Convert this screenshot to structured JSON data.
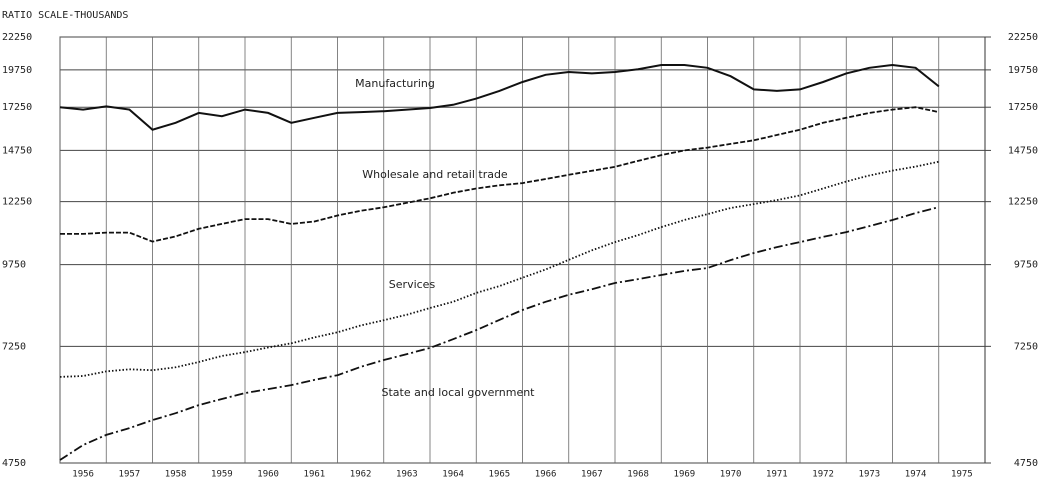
{
  "chart_data": {
    "type": "line",
    "title": "RATIO SCALE-THOUSANDS",
    "x": [
      1956.0,
      1956.5,
      1957.0,
      1957.5,
      1958.0,
      1958.5,
      1959.0,
      1959.5,
      1960.0,
      1960.5,
      1961.0,
      1961.5,
      1962.0,
      1962.5,
      1963.0,
      1963.5,
      1964.0,
      1964.5,
      1965.0,
      1965.5,
      1966.0,
      1966.5,
      1967.0,
      1967.5,
      1968.0,
      1968.5,
      1969.0,
      1969.5,
      1970.0,
      1970.5,
      1971.0,
      1971.5,
      1972.0,
      1972.5,
      1973.0,
      1973.5,
      1974.0,
      1974.5,
      1975.0
    ],
    "series": [
      {
        "name": "Manufacturing",
        "color": "#111",
        "style": "solid",
        "values": [
          17250,
          17100,
          17300,
          17100,
          15900,
          16300,
          16900,
          16700,
          17100,
          16900,
          16300,
          16600,
          16900,
          16950,
          17000,
          17100,
          17200,
          17400,
          17800,
          18300,
          18900,
          19400,
          19600,
          19500,
          19600,
          19800,
          20100,
          20100,
          19900,
          19300,
          18400,
          18300,
          18400,
          18900,
          19500,
          19900,
          20100,
          19900,
          18600
        ]
      },
      {
        "name": "Wholesale and retail trade",
        "color": "#111",
        "style": "dashed",
        "values": [
          10900,
          10900,
          10950,
          10950,
          10600,
          10800,
          11100,
          11300,
          11500,
          11500,
          11300,
          11400,
          11650,
          11850,
          12000,
          12200,
          12400,
          12650,
          12850,
          13000,
          13100,
          13300,
          13500,
          13700,
          13900,
          14200,
          14500,
          14750,
          14900,
          15100,
          15300,
          15600,
          15900,
          16300,
          16600,
          16900,
          17100,
          17250,
          16950
        ]
      },
      {
        "name": "Services",
        "color": "#111",
        "style": "dotted",
        "values": [
          6490,
          6510,
          6620,
          6670,
          6650,
          6720,
          6850,
          7000,
          7100,
          7220,
          7330,
          7490,
          7630,
          7820,
          7970,
          8130,
          8330,
          8520,
          8800,
          9020,
          9300,
          9580,
          9920,
          10270,
          10580,
          10850,
          11170,
          11460,
          11710,
          11970,
          12140,
          12320,
          12530,
          12850,
          13180,
          13470,
          13710,
          13910,
          14160
        ]
      },
      {
        "name": "State and local government",
        "color": "#111",
        "style": "dashdot",
        "values": [
          4802,
          5070,
          5260,
          5390,
          5550,
          5690,
          5860,
          5990,
          6120,
          6210,
          6300,
          6420,
          6530,
          6730,
          6900,
          7050,
          7210,
          7440,
          7690,
          7980,
          8270,
          8520,
          8740,
          8920,
          9120,
          9250,
          9390,
          9530,
          9630,
          9910,
          10170,
          10390,
          10580,
          10780,
          10970,
          11210,
          11460,
          11750,
          12010
        ]
      }
    ],
    "xlim": [
      1956,
      1976
    ],
    "xticks": [
      1956,
      1957,
      1958,
      1959,
      1960,
      1961,
      1962,
      1963,
      1964,
      1965,
      1966,
      1967,
      1968,
      1969,
      1970,
      1971,
      1972,
      1973,
      1974,
      1975
    ],
    "ylim": [
      4750,
      22250
    ],
    "yticks": [
      4750,
      7250,
      9750,
      12250,
      14750,
      17250,
      19750,
      22250
    ],
    "y2lim": [
      4750,
      22250
    ],
    "y2ticks": [
      4750,
      7250,
      9750,
      12250,
      14750,
      17250,
      19750,
      22250
    ],
    "log_scale": true,
    "grid": true
  }
}
